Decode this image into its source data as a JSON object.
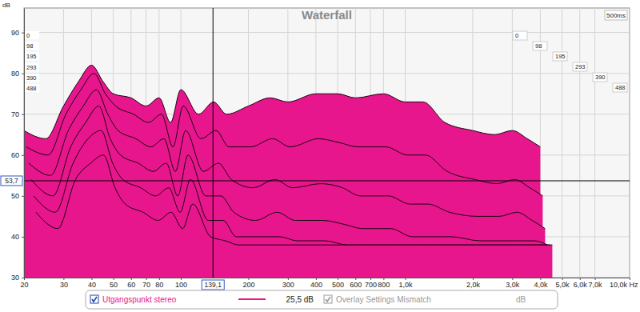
{
  "chart_data": {
    "type": "waterfall",
    "title": "Waterfall",
    "y_label": "dB",
    "time_span_label": "500ms",
    "log": "x",
    "grid": true,
    "xlim": [
      20,
      10000
    ],
    "ylim": [
      30,
      96
    ],
    "xticks": [
      20,
      30,
      40,
      50,
      60,
      70,
      80,
      100,
      200,
      300,
      400,
      500,
      600,
      700,
      800,
      {
        "value": 1000,
        "label": "1,0k"
      },
      {
        "value": 2000,
        "label": "2,0k"
      },
      {
        "value": 3000,
        "label": "3,0k"
      },
      {
        "value": 4000,
        "label": "4,0k"
      },
      {
        "value": 5000,
        "label": "5,0k"
      },
      {
        "value": 6000,
        "label": "6,0k"
      },
      {
        "value": 7000,
        "label": "7,0k"
      },
      {
        "value": 10000,
        "label": "10,0k Hz"
      }
    ],
    "yticks": [
      30,
      40,
      50,
      60,
      70,
      80,
      90
    ],
    "cursor": {
      "x": {
        "value": 139.1,
        "label": "139,1"
      },
      "y": {
        "value": 53.7,
        "label": "53,7"
      }
    },
    "x": [
      20,
      25,
      30,
      35,
      40,
      45,
      50,
      60,
      70,
      80,
      90,
      100,
      120,
      140,
      160,
      200,
      250,
      300,
      400,
      500,
      600,
      800,
      1000,
      1200,
      1500,
      2000,
      2500,
      3000,
      3500,
      4000
    ],
    "series": [
      {
        "name": "0",
        "color": "#e8168c",
        "values": [
          66,
          64,
          72,
          78,
          82,
          78,
          75,
          74,
          72,
          74,
          68,
          76,
          70,
          73,
          70,
          72,
          74,
          73,
          75,
          75,
          74,
          75,
          73,
          73,
          68,
          66,
          65,
          66,
          64,
          62
        ]
      },
      {
        "name": "98",
        "color": "#e8168c",
        "values": [
          62,
          60,
          70,
          76,
          80,
          75,
          72,
          70,
          68,
          70,
          62,
          72,
          64,
          66,
          62,
          62,
          64,
          62,
          64,
          63,
          62,
          62,
          60,
          60,
          56,
          54,
          53,
          54,
          52,
          50
        ]
      },
      {
        "name": "195",
        "color": "#e8168c",
        "values": [
          58,
          55,
          66,
          72,
          76,
          70,
          66,
          64,
          62,
          64,
          56,
          66,
          56,
          58,
          54,
          52,
          54,
          52,
          53,
          52,
          50,
          50,
          48,
          48,
          46,
          45,
          45,
          46,
          44,
          42
        ]
      },
      {
        "name": "293",
        "color": "#e8168c",
        "values": [
          54,
          50,
          62,
          68,
          72,
          64,
          60,
          58,
          56,
          58,
          50,
          60,
          50,
          50,
          46,
          44,
          46,
          44,
          44,
          43,
          42,
          42,
          40,
          40,
          40,
          39,
          39,
          39,
          39,
          38
        ]
      },
      {
        "name": "390",
        "color": "#e8168c",
        "values": [
          50,
          46,
          58,
          64,
          66,
          58,
          54,
          52,
          50,
          52,
          46,
          54,
          44,
          44,
          40,
          40,
          40,
          39,
          39,
          38,
          38,
          38,
          38,
          38,
          38,
          38,
          38,
          38,
          38,
          38
        ]
      },
      {
        "name": "488",
        "color": "#e8168c",
        "values": [
          46,
          42,
          54,
          58,
          60,
          52,
          48,
          46,
          44,
          46,
          42,
          48,
          40,
          39,
          38,
          38,
          38,
          38,
          38,
          38,
          38,
          38,
          38,
          38,
          38,
          38,
          38,
          38,
          38,
          38
        ]
      }
    ],
    "legend_panel": {
      "name": "Utgangspunkt stereo",
      "color": "#e8168c",
      "value_text": "25,5 dB",
      "overlay_label": "Overlay Settings Mismatch",
      "overlay_unit": "dB"
    }
  }
}
